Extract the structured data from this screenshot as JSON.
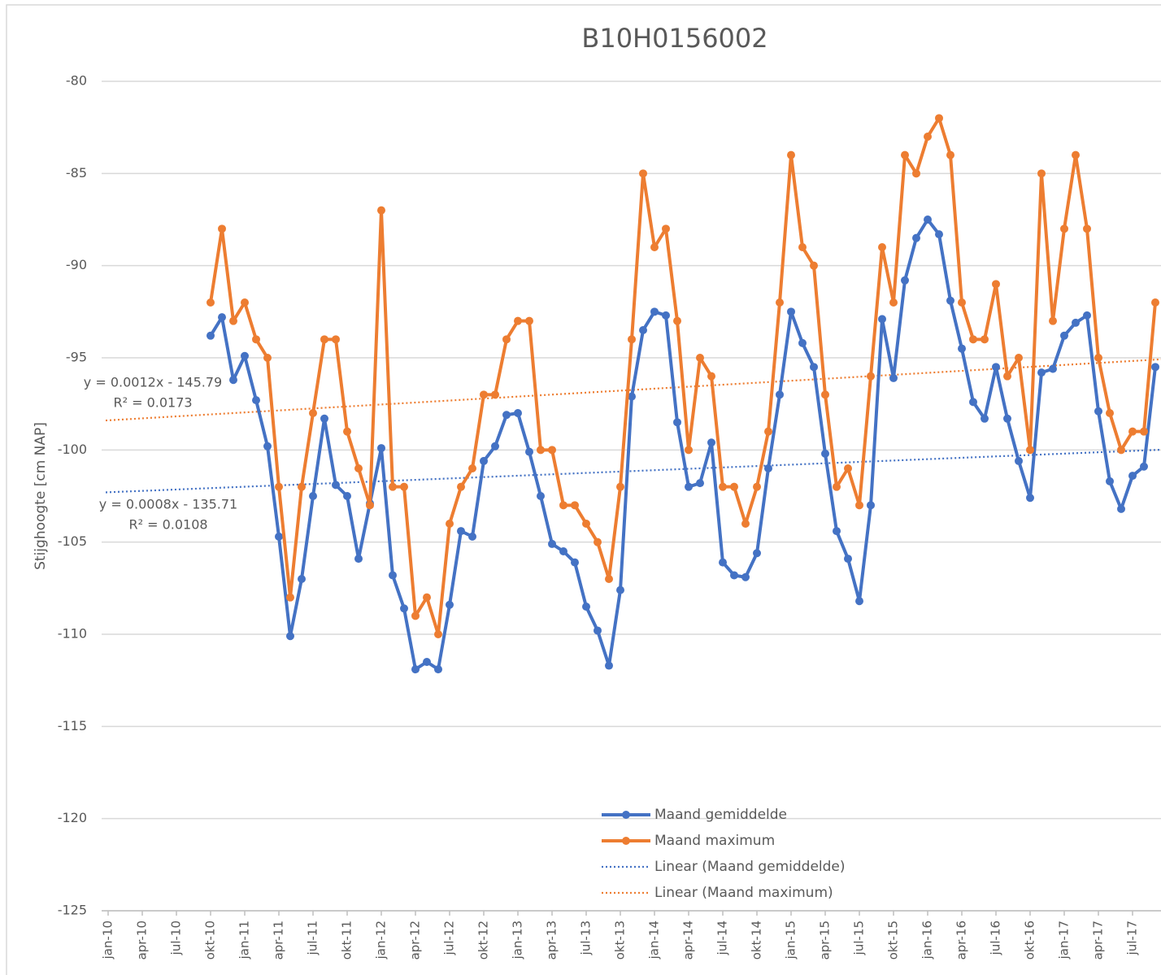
{
  "chart_data": {
    "type": "line",
    "title": "B10H0156002",
    "y_label": "Stijghoogte [cm NAP]",
    "ylim": [
      -125,
      -80
    ],
    "yticks": [
      -125,
      -120,
      -115,
      -110,
      -105,
      -100,
      -95,
      -90,
      -85,
      -80
    ],
    "grid": true,
    "legend": "bottom",
    "categories": [
      "jan-10",
      null,
      null,
      "apr-10",
      null,
      null,
      "jul-10",
      null,
      null,
      "okt-10",
      null,
      null,
      "jan-11",
      null,
      null,
      "apr-11",
      null,
      null,
      "jul-11",
      null,
      null,
      "okt-11",
      null,
      null,
      "jan-12",
      null,
      null,
      "apr-12",
      null,
      null,
      "jul-12",
      null,
      null,
      "okt-12",
      null,
      null,
      "jan-13",
      null,
      null,
      "apr-13",
      null,
      null,
      "jul-13",
      null,
      null,
      "okt-13",
      null,
      null,
      "jan-14",
      null,
      null,
      "apr-14",
      null,
      null,
      "jul-14",
      null,
      null,
      "okt-14",
      null,
      null,
      "jan-15",
      null,
      null,
      "apr-15",
      null,
      null,
      "jul-15",
      null,
      null,
      "okt-15",
      null,
      null,
      "jan-16",
      null,
      null,
      "apr-16",
      null,
      null,
      "jul-16",
      null,
      null,
      "okt-16",
      null,
      null,
      "jan-17",
      null,
      null,
      "apr-17",
      null,
      null,
      "jul-17",
      null,
      null
    ],
    "series": [
      {
        "name": "Maand gemiddelde",
        "color": "#4472c4",
        "values": [
          null,
          null,
          null,
          null,
          null,
          null,
          null,
          null,
          null,
          -93.8,
          -92.8,
          -96.2,
          -94.9,
          -97.3,
          -99.8,
          -104.7,
          -110.1,
          -107.0,
          -102.5,
          -98.3,
          -101.9,
          -102.5,
          -105.9,
          -102.9,
          -99.9,
          -106.8,
          -108.6,
          -111.9,
          -111.5,
          -111.9,
          -108.4,
          -104.4,
          -104.7,
          -100.6,
          -99.8,
          -98.1,
          -98.0,
          -100.1,
          -102.5,
          -105.1,
          -105.5,
          -106.1,
          -108.5,
          -109.8,
          -111.7,
          -107.6,
          -97.1,
          -93.5,
          -92.5,
          -92.7,
          -98.5,
          -102.0,
          -101.8,
          -99.6,
          -106.1,
          -106.8,
          -106.9,
          -105.6,
          -101.0,
          -97.0,
          -92.5,
          -94.2,
          -95.5,
          -100.2,
          -104.4,
          -105.9,
          -108.2,
          -103.0,
          -92.9,
          -96.1,
          -90.8,
          -88.5,
          -87.5,
          -88.3,
          -91.9,
          -94.5,
          -97.4,
          -98.3,
          -95.5,
          -98.3,
          -100.6,
          -102.6,
          -95.8,
          -95.6,
          -93.8,
          -93.1,
          -92.7,
          -97.9,
          -101.7,
          -103.2,
          -101.4,
          -100.9,
          -95.5
        ]
      },
      {
        "name": "Maand maximum",
        "color": "#ed7d31",
        "values": [
          null,
          null,
          null,
          null,
          null,
          null,
          null,
          null,
          null,
          -92,
          -88,
          -93,
          -92,
          -94,
          -95,
          -102,
          -108,
          -102,
          -98,
          -94,
          -94,
          -99,
          -101,
          -103,
          -87,
          -102,
          -102,
          -109,
          -108,
          -110,
          -104,
          -102,
          -101,
          -97,
          -97,
          -94,
          -93,
          -93,
          -100,
          -100,
          -103,
          -103,
          -104,
          -105,
          -107,
          -102,
          -94,
          -85,
          -89,
          -88,
          -93,
          -100,
          -95,
          -96,
          -102,
          -102,
          -104,
          -102,
          -99,
          -92,
          -84,
          -89,
          -90,
          -97,
          -102,
          -101,
          -103,
          -96,
          -89,
          -92,
          -84,
          -85,
          -83,
          -82,
          -84,
          -92,
          -94,
          -94,
          -91,
          -96,
          -95,
          -100,
          -85,
          -93,
          -88,
          -84,
          -88,
          -95,
          -98,
          -100,
          -99,
          -99,
          -92
        ]
      }
    ],
    "trendlines": [
      {
        "name": "Linear (Maand gemiddelde)",
        "color": "#4472c4",
        "from": -102.3,
        "to": -100.0,
        "equation": "y = 0.0008x - 135.71",
        "r2": "R² = 0.0108"
      },
      {
        "name": "Linear (Maand maximum)",
        "color": "#ed7d31",
        "from": -98.4,
        "to": -95.1,
        "equation": "y = 0.0012x - 145.79",
        "r2": "R² = 0.0173"
      }
    ]
  }
}
